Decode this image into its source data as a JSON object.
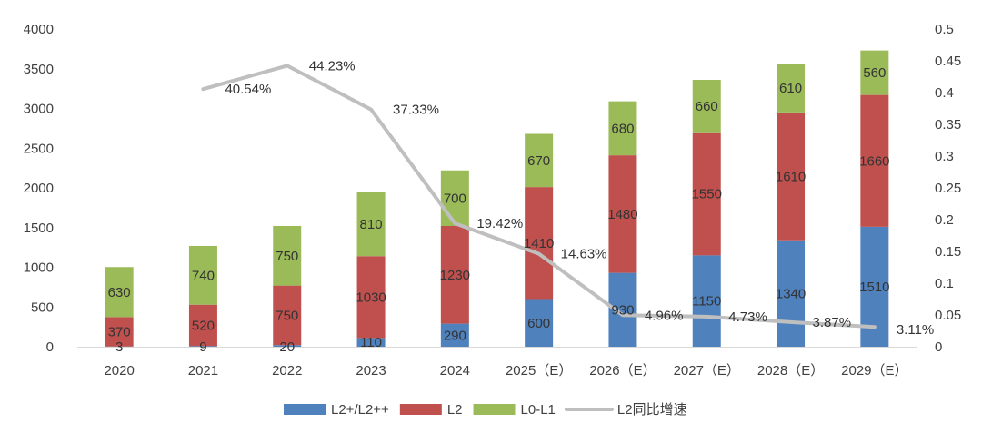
{
  "colors": {
    "l2plus": "#4f81bd",
    "l2": "#c0504d",
    "l0l1": "#9bbb59",
    "growth_line": "#bfbfbf",
    "text": "#404040"
  },
  "chart_data": {
    "type": "bar",
    "stacked": true,
    "categories": [
      "2020",
      "2021",
      "2022",
      "2023",
      "2024",
      "2025（E）",
      "2026（E）",
      "2027（E）",
      "2028（E）",
      "2029（E）"
    ],
    "series": [
      {
        "key": "l2plus",
        "name": "L2+/L2++",
        "values": [
          3,
          9,
          20,
          110,
          290,
          600,
          930,
          1150,
          1340,
          1510
        ],
        "labels": [
          "3",
          "9",
          "20",
          "110",
          "290",
          "600",
          "930",
          "1150",
          "1340",
          "1510"
        ]
      },
      {
        "key": "l2",
        "name": "L2",
        "values": [
          370,
          520,
          750,
          1030,
          1230,
          1410,
          1480,
          1550,
          1610,
          1660
        ],
        "labels": [
          "370",
          "520",
          "750",
          "1030",
          "1230",
          "1410",
          "1480",
          "1550",
          "1610",
          "1660"
        ]
      },
      {
        "key": "l0l1",
        "name": "L0-L1",
        "values": [
          630,
          740,
          750,
          810,
          700,
          670,
          680,
          660,
          610,
          560
        ],
        "labels": [
          "630",
          "740",
          "750",
          "810",
          "700",
          "670",
          "680",
          "660",
          "610",
          "560"
        ]
      }
    ],
    "line_series": {
      "name": "L2同比增速",
      "axis": "right",
      "values": [
        null,
        0.4054,
        0.4423,
        0.3733,
        0.1942,
        0.1463,
        0.0496,
        0.0473,
        0.0387,
        0.0311
      ],
      "labels": [
        "",
        "40.54%",
        "44.23%",
        "37.33%",
        "19.42%",
        "14.63%",
        "4.96%",
        "4.73%",
        "3.87%",
        "3.11%"
      ]
    },
    "y_left": {
      "min": 0,
      "max": 4000,
      "ticks": [
        "0",
        "500",
        "1000",
        "1500",
        "2000",
        "2500",
        "3000",
        "3500",
        "4000"
      ]
    },
    "y_right": {
      "min": 0,
      "max": 0.5,
      "ticks": [
        "0",
        "0.05",
        "0.1",
        "0.15",
        "0.2",
        "0.25",
        "0.3",
        "0.35",
        "0.4",
        "0.45",
        "0.5"
      ]
    },
    "grid": false,
    "legend_position": "bottom-center",
    "title": "",
    "xlabel": "",
    "ylabel": ""
  }
}
